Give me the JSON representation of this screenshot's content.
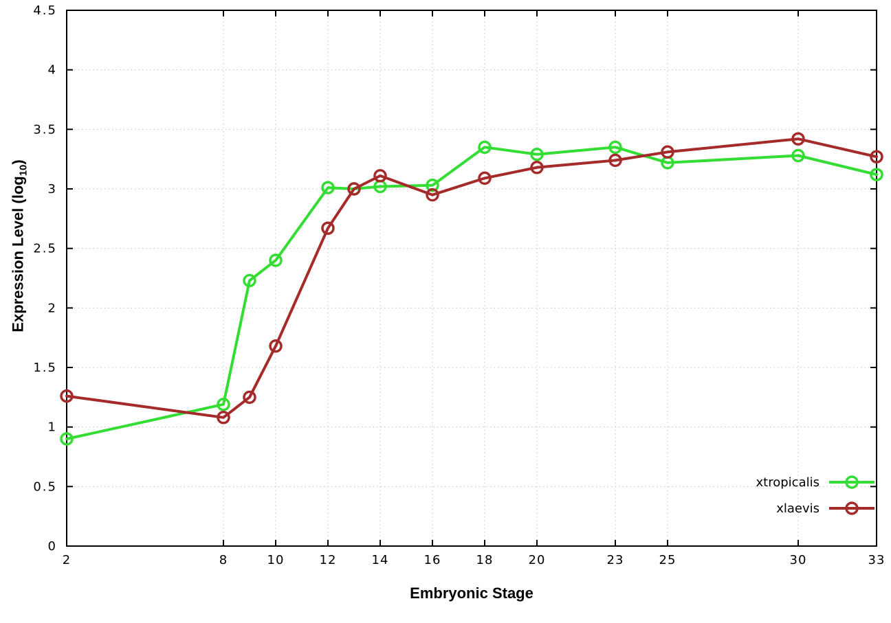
{
  "page": {
    "background": "#ffffff"
  },
  "chart_data": {
    "type": "line",
    "title": "",
    "xlabel": "Embryonic Stage",
    "ylabel_main": "Expression Level (log",
    "ylabel_sub": "10",
    "ylabel_suffix": ")",
    "xlim": [
      2,
      33
    ],
    "ylim": [
      0,
      4.5
    ],
    "xticks": [
      2,
      8,
      10,
      12,
      14,
      16,
      18,
      20,
      23,
      25,
      30,
      33
    ],
    "yticks": [
      0,
      0.5,
      1,
      1.5,
      2,
      2.5,
      3,
      3.5,
      4,
      4.5
    ],
    "grid": true,
    "grid_color": "#c0c0c0",
    "border_color": "#000000",
    "legend_position": "inside-bottom-right",
    "x": [
      2,
      8,
      9,
      10,
      12,
      13,
      14,
      16,
      18,
      20,
      23,
      25,
      30,
      33
    ],
    "series": [
      {
        "name": "xtropicalis",
        "color": "#33dd33",
        "values": [
          0.9,
          1.19,
          2.23,
          2.4,
          3.01,
          3.0,
          3.02,
          3.03,
          3.35,
          3.29,
          3.35,
          3.22,
          3.28,
          3.12
        ]
      },
      {
        "name": "xlaevis",
        "color": "#a52a2a",
        "values": [
          1.26,
          1.08,
          1.25,
          1.68,
          2.67,
          3.0,
          3.11,
          2.95,
          3.09,
          3.18,
          3.24,
          3.31,
          3.42,
          3.27
        ]
      }
    ]
  }
}
